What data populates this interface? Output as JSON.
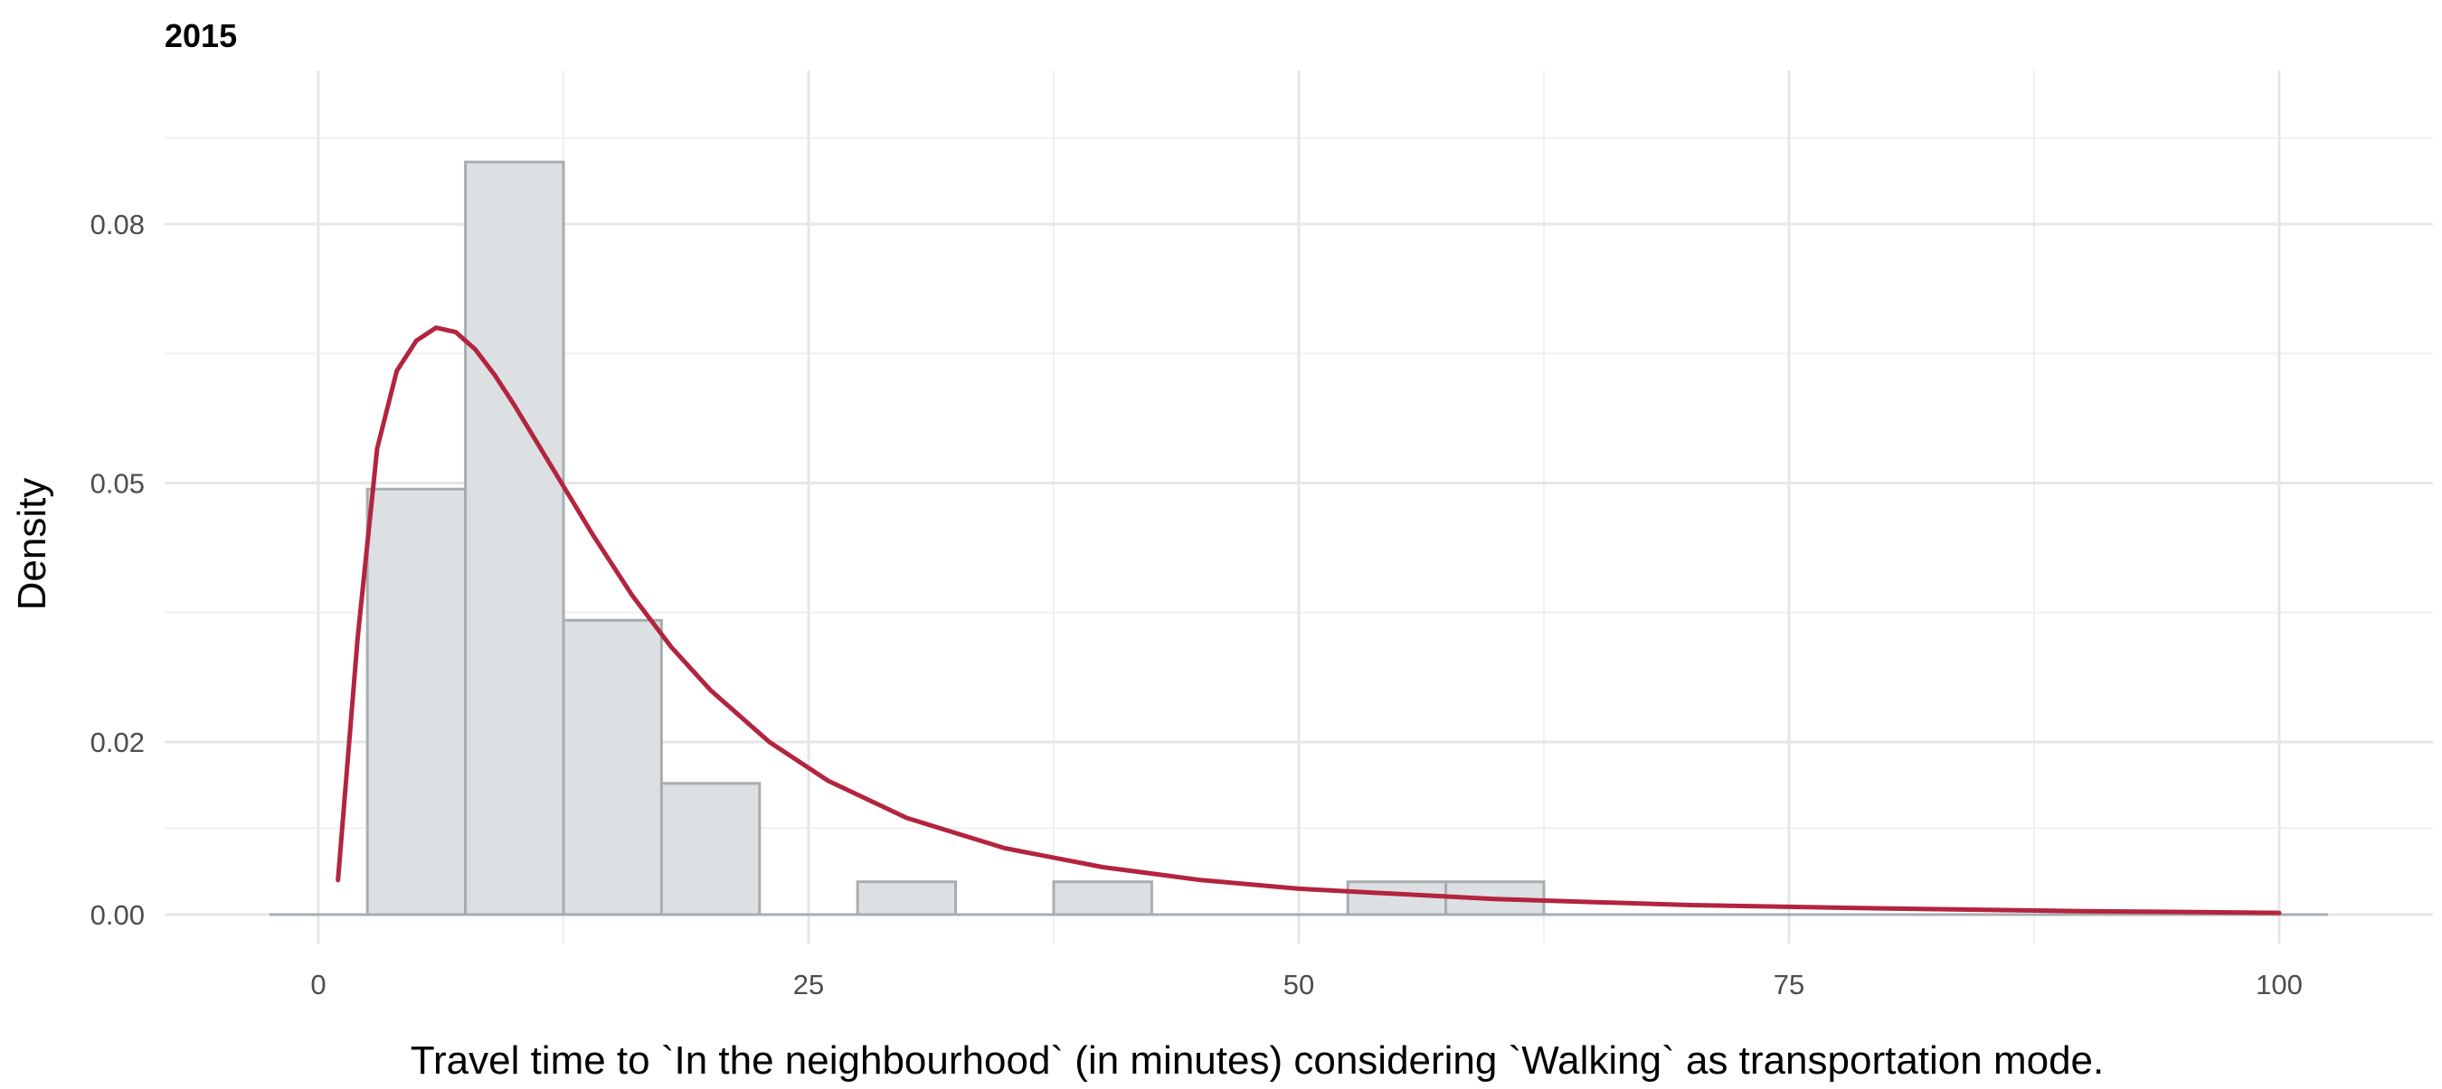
{
  "chart_data": {
    "type": "histogram-with-density",
    "title": "2015",
    "xlabel": "Travel time to `In the neighbourhood` (in minutes) considering `Walking` as transportation mode.",
    "ylabel": "Density",
    "x_ticks": [
      0,
      25,
      50,
      75,
      100
    ],
    "y_ticks": [
      0.0,
      0.02,
      0.05,
      0.08
    ],
    "y_tick_labels": [
      "0.00",
      "0.02",
      "0.05",
      "0.08"
    ],
    "xlim": [
      -5,
      105
    ],
    "ylim": [
      0,
      0.0875
    ],
    "grid": true,
    "bins": [
      {
        "x0": 2.5,
        "x1": 7.5,
        "density": 0.0493
      },
      {
        "x0": 7.5,
        "x1": 12.5,
        "density": 0.0872
      },
      {
        "x0": 12.5,
        "x1": 17.5,
        "density": 0.0341
      },
      {
        "x0": 17.5,
        "x1": 22.5,
        "density": 0.0152
      },
      {
        "x0": 27.5,
        "x1": 32.5,
        "density": 0.0038
      },
      {
        "x0": 37.5,
        "x1": 42.5,
        "density": 0.0038
      },
      {
        "x0": 52.5,
        "x1": 57.5,
        "density": 0.0038
      },
      {
        "x0": 57.5,
        "x1": 62.5,
        "density": 0.0038
      }
    ],
    "density_curve": {
      "x": [
        1,
        2,
        3,
        4,
        5,
        6,
        7,
        8,
        9,
        10,
        12,
        14,
        16,
        18,
        20,
        23,
        26,
        30,
        35,
        40,
        45,
        50,
        60,
        70,
        80,
        90,
        100
      ],
      "y": [
        0.004,
        0.032,
        0.054,
        0.063,
        0.0665,
        0.068,
        0.0675,
        0.0655,
        0.0625,
        0.059,
        0.0515,
        0.044,
        0.037,
        0.031,
        0.026,
        0.02,
        0.0155,
        0.0112,
        0.0077,
        0.0055,
        0.004,
        0.003,
        0.0018,
        0.0011,
        0.0007,
        0.0004,
        0.0002
      ]
    },
    "colors": {
      "bar_fill": "#dce0e3",
      "bar_stroke": "#a8adb0",
      "density_line": "#b3243f",
      "grid_major": "#e6e6e6",
      "grid_minor": "#f0f0f0",
      "baseline": "#a8adb0"
    }
  }
}
